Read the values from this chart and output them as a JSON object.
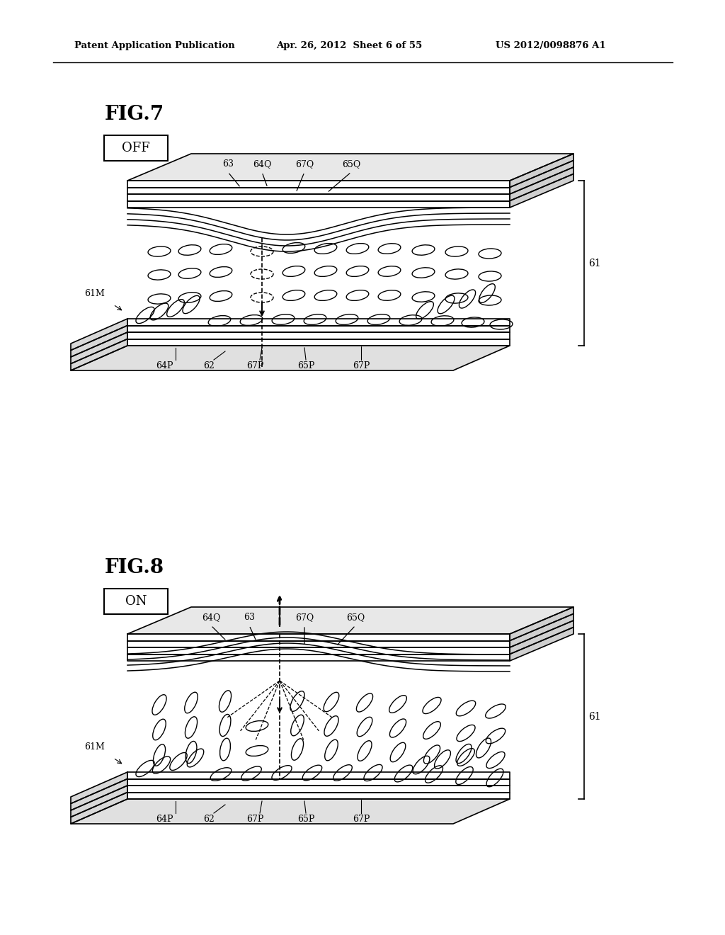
{
  "bg_color": "#ffffff",
  "header_left": "Patent Application Publication",
  "header_mid": "Apr. 26, 2012  Sheet 6 of 55",
  "header_right": "US 2012/0098876 A1",
  "fig7_label": "FIG.7",
  "fig8_label": "FIG.8",
  "off_label": "OFF",
  "on_label": "ON",
  "label_61": "61",
  "label_61M": "61M",
  "label_62": "62",
  "label_63": "63",
  "label_64P": "64P",
  "label_64Q": "64Q",
  "label_65P": "65P",
  "label_65Q": "65Q",
  "label_67P": "67P",
  "label_67Q": "67Q"
}
